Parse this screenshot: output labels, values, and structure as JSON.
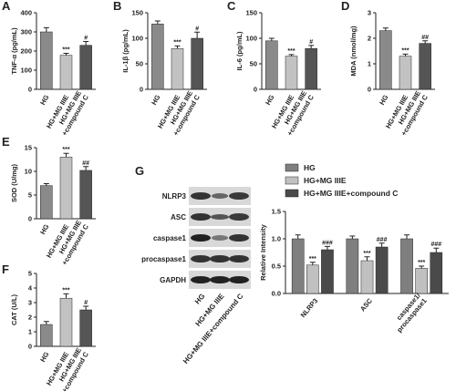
{
  "chart_data": [
    {
      "panel": "A",
      "type": "bar",
      "ylabel": "TNF-α (pg/mL)",
      "categories": [
        "HG",
        "HG+MG IIIE",
        "HG+MG IIIE\n+compound C"
      ],
      "values": [
        300,
        178,
        230
      ],
      "errors": [
        22,
        10,
        20
      ],
      "annotations": [
        null,
        "***",
        "#"
      ],
      "colors": [
        "#8a8a8a",
        "#c2c2c2",
        "#555555"
      ],
      "ylim": [
        0,
        400
      ],
      "yticks": [
        0,
        100,
        200,
        300,
        400
      ]
    },
    {
      "panel": "B",
      "type": "bar",
      "ylabel": "IL-1β (pg/mL)",
      "categories": [
        "HG",
        "HG+MG IIIE",
        "HG+MG IIIE\n+compound C"
      ],
      "values": [
        128,
        80,
        100
      ],
      "errors": [
        6,
        5,
        12
      ],
      "annotations": [
        null,
        "***",
        "#"
      ],
      "colors": [
        "#8a8a8a",
        "#c2c2c2",
        "#555555"
      ],
      "ylim": [
        0,
        150
      ],
      "yticks": [
        0,
        50,
        100,
        150
      ]
    },
    {
      "panel": "C",
      "type": "bar",
      "ylabel": "IL-6 (pg/mL)",
      "categories": [
        "HG",
        "HG+MG IIIE",
        "HG+MG IIIE\n+compound C"
      ],
      "values": [
        95,
        65,
        80
      ],
      "errors": [
        5,
        3,
        6
      ],
      "annotations": [
        null,
        "***",
        "#"
      ],
      "colors": [
        "#8a8a8a",
        "#c2c2c2",
        "#555555"
      ],
      "ylim": [
        0,
        150
      ],
      "yticks": [
        0,
        50,
        100,
        150
      ]
    },
    {
      "panel": "D",
      "type": "bar",
      "ylabel": "MDA (nmol/mg)",
      "categories": [
        "HG",
        "HG+MG IIIE",
        "HG+MG IIIE\n+compound C"
      ],
      "values": [
        2.3,
        1.3,
        1.8
      ],
      "errors": [
        0.1,
        0.08,
        0.1
      ],
      "annotations": [
        null,
        "***",
        "##"
      ],
      "colors": [
        "#8a8a8a",
        "#c2c2c2",
        "#555555"
      ],
      "ylim": [
        0,
        3
      ],
      "yticks": [
        0,
        1,
        2,
        3
      ]
    },
    {
      "panel": "E",
      "type": "bar",
      "ylabel": "SOD (U/mg)",
      "categories": [
        "HG",
        "HG+MG IIIE",
        "HG+MG IIIE\n+compound C"
      ],
      "values": [
        7,
        13,
        10.2
      ],
      "errors": [
        0.4,
        0.8,
        0.8
      ],
      "annotations": [
        null,
        "***",
        "##"
      ],
      "colors": [
        "#8a8a8a",
        "#c2c2c2",
        "#555555"
      ],
      "ylim": [
        0,
        15
      ],
      "yticks": [
        0,
        5,
        10,
        15
      ]
    },
    {
      "panel": "F",
      "type": "bar",
      "ylabel": "CAT (U/L)",
      "categories": [
        "HG",
        "HG+MG IIIE",
        "HG+MG IIIE\n+compound C"
      ],
      "values": [
        1.5,
        3.3,
        2.5
      ],
      "errors": [
        0.2,
        0.3,
        0.25
      ],
      "annotations": [
        null,
        "***",
        "#"
      ],
      "colors": [
        "#8a8a8a",
        "#c2c2c2",
        "#555555"
      ],
      "ylim": [
        0,
        5
      ],
      "yticks": [
        0,
        1,
        2,
        3,
        4,
        5
      ]
    },
    {
      "panel": "G",
      "type": "grouped_bar",
      "ylabel": "Relative Intensity",
      "categories": [
        "NLRP3",
        "ASC",
        "caspase1/\nprocaspase1"
      ],
      "series": [
        {
          "name": "HG",
          "color": "#7f7f7f",
          "values": [
            1.0,
            1.0,
            1.0
          ],
          "errors": [
            0.07,
            0.05,
            0.07
          ],
          "annotations": [
            null,
            null,
            null
          ]
        },
        {
          "name": "HG+MG IIIE",
          "color": "#c0c0c0",
          "values": [
            0.52,
            0.6,
            0.46
          ],
          "errors": [
            0.05,
            0.07,
            0.04
          ],
          "annotations": [
            "***",
            "***",
            "***"
          ]
        },
        {
          "name": "HG+MG IIIE+compound C",
          "color": "#4a4a4a",
          "values": [
            0.8,
            0.85,
            0.75
          ],
          "errors": [
            0.06,
            0.07,
            0.08
          ],
          "annotations": [
            "###",
            "###",
            "###"
          ]
        }
      ],
      "ylim": [
        0,
        1.5
      ],
      "yticks": [
        {
          "value": 0,
          "label": "0.0"
        },
        {
          "value": 0.5,
          "label": "0.5"
        },
        {
          "value": 1.0,
          "label": "1.0"
        },
        {
          "value": 1.5,
          "label": "1.5"
        }
      ],
      "legend": "top"
    }
  ],
  "blot": {
    "rows": [
      "NLRP3",
      "ASC",
      "caspase1",
      "procaspase1",
      "GAPDH"
    ],
    "lanes": [
      "HG",
      "HG+MG IIIE",
      "HG+MG IIIE+compound C"
    ]
  }
}
